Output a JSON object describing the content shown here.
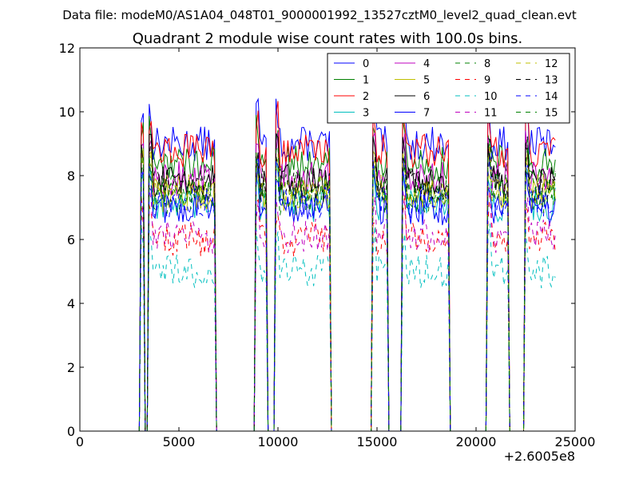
{
  "figure": {
    "suptitle": "Data file: modeM0/AS1A04_048T01_9000001992_13527cztM0_level2_quad_clean.evt"
  },
  "chart_data": {
    "type": "line",
    "title": "Quadrant 2 module wise count rates with 100.0s bins.",
    "xlabel": "",
    "ylabel": "",
    "xlim": [
      0,
      25000
    ],
    "ylim": [
      0,
      12
    ],
    "x_offset_label": "+2.6005e8",
    "x_ticks": [
      0,
      5000,
      10000,
      15000,
      20000,
      25000
    ],
    "y_ticks": [
      0,
      2,
      4,
      6,
      8,
      10,
      12
    ],
    "grid": false,
    "legend": {
      "placement": "top-right",
      "columns": 4
    },
    "active_intervals": [
      [
        3100,
        3250
      ],
      [
        3500,
        6800
      ],
      [
        8900,
        9400
      ],
      [
        9900,
        12600
      ],
      [
        14800,
        15500
      ],
      [
        16300,
        18600
      ],
      [
        20600,
        21600
      ],
      [
        22500,
        24000
      ]
    ],
    "series": [
      {
        "name": "0",
        "color": "#0000ff",
        "dash": "solid",
        "level": 9.0
      },
      {
        "name": "1",
        "color": "#008000",
        "dash": "solid",
        "level": 8.4
      },
      {
        "name": "2",
        "color": "#ff0000",
        "dash": "solid",
        "level": 8.8
      },
      {
        "name": "3",
        "color": "#00bfbf",
        "dash": "solid",
        "level": 7.1
      },
      {
        "name": "4",
        "color": "#bf00bf",
        "dash": "solid",
        "level": 7.9
      },
      {
        "name": "5",
        "color": "#bfbf00",
        "dash": "solid",
        "level": 7.4
      },
      {
        "name": "6",
        "color": "#000000",
        "dash": "solid",
        "level": 7.8
      },
      {
        "name": "7",
        "color": "#0000ff",
        "dash": "solid",
        "level": 7.0
      },
      {
        "name": "8",
        "color": "#008000",
        "dash": "dashed",
        "level": 7.6
      },
      {
        "name": "9",
        "color": "#ff0000",
        "dash": "dashed",
        "level": 6.0
      },
      {
        "name": "10",
        "color": "#00bfbf",
        "dash": "dashed",
        "level": 5.0
      },
      {
        "name": "11",
        "color": "#bf00bf",
        "dash": "dashed",
        "level": 6.1
      },
      {
        "name": "12",
        "color": "#bfbf00",
        "dash": "dashed",
        "level": 7.5
      },
      {
        "name": "13",
        "color": "#000000",
        "dash": "dashed",
        "level": 7.7
      },
      {
        "name": "14",
        "color": "#0000ff",
        "dash": "dashed",
        "level": 7.2
      },
      {
        "name": "15",
        "color": "#008000",
        "dash": "dashed",
        "level": 7.3
      }
    ]
  }
}
